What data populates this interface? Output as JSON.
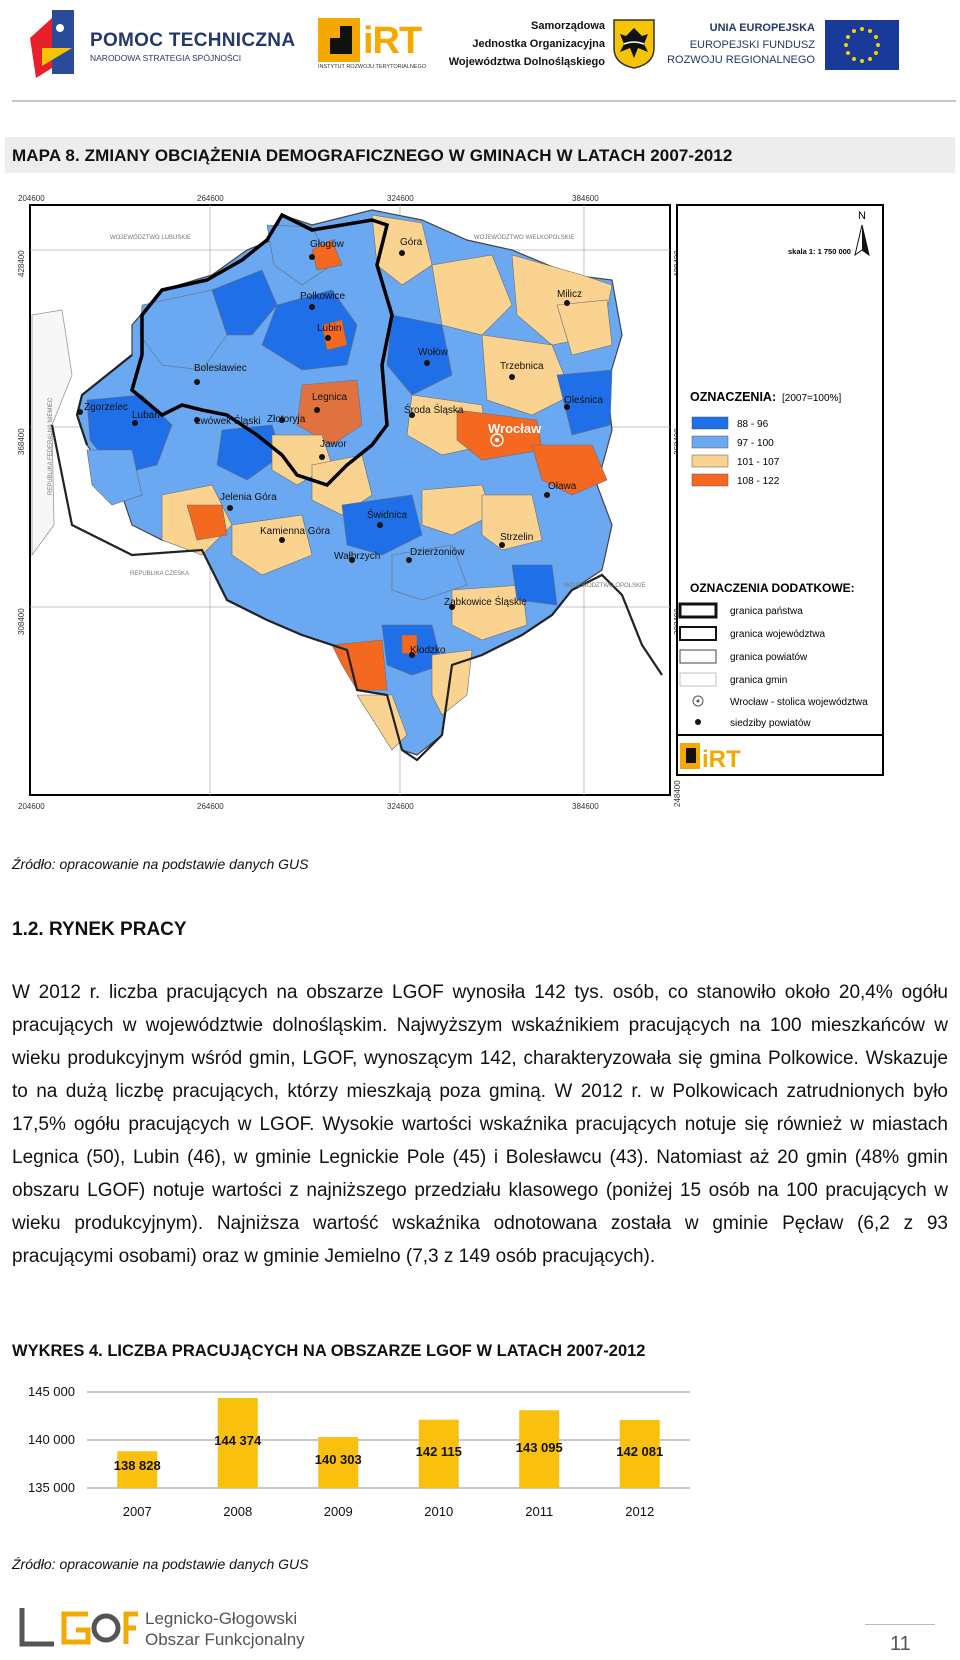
{
  "header": {
    "pt_title": "POMOC TECHNICZNA",
    "pt_sub": "NARODOWA STRATEGIA SPÓJNOŚCI",
    "irt_name": "iRT",
    "irt_sub": "INSTYTUT ROZWOJU TERYTORIALNEGO",
    "sjo_line1": "Samorządowa",
    "sjo_line2": "Jednostka Organizacyjna",
    "sjo_line3": "Województwa Dolnośląskiego",
    "eu_line1": "UNIA EUROPEJSKA",
    "eu_line2": "EUROPEJSKI FUNDUSZ",
    "eu_line3": "ROZWOJU REGIONALNEGO"
  },
  "map": {
    "title": "MAPA 8. ZMIANY OBCIĄŻENIA DEMOGRAFICZNEGO W GMINACH W LATACH 2007-2012",
    "x_ticks": [
      "204600",
      "264600",
      "324600",
      "384600"
    ],
    "y_ticks": [
      "428400",
      "368400",
      "308400",
      "248400"
    ],
    "north": "N",
    "scale": "skala 1: 1 750 000",
    "legend_title": "OZNACZENIA:",
    "legend_note": "[2007=100%]",
    "legend": [
      {
        "label": "88 - 96",
        "color": "#1f6fe8"
      },
      {
        "label": "97 - 100",
        "color": "#6aa8f2"
      },
      {
        "label": "101 - 107",
        "color": "#fbd390"
      },
      {
        "label": "108 - 122",
        "color": "#f4691f"
      }
    ],
    "extra_title": "OZNACZENIA DODATKOWE:",
    "extra": [
      "granica państwa",
      "granica województwa",
      "granica powiatów",
      "granica gmin",
      "Wrocław - stolica województwa",
      "siedziby powiatów"
    ],
    "neighbors": [
      "WOJEWÓDZTWO LUBUSKIE",
      "WOJEWÓDZTWO WIELKOPOLSKIE",
      "REPUBLIKA FEDERALNA NIEMIEC",
      "REPUBLIKA CZESKA",
      "WOJEWÓDZTWO OPOLSKIE"
    ],
    "cities": [
      "Głogów",
      "Góra",
      "Polkowice",
      "Milicz",
      "Lubin",
      "Wołów",
      "Trzebnica",
      "Bolesławiec",
      "Legnica",
      "Oleśnica",
      "Zgorzelec",
      "Lubań",
      "Lwówek Śląski",
      "Złotoryja",
      "Środa Śląska",
      "Wrocław",
      "Jawor",
      "Oława",
      "Jelenia Góra",
      "Świdnica",
      "Kamienna Góra",
      "Strzelin",
      "Wałbrzych",
      "Dzierżoniów",
      "Ząbkowice Śląskie",
      "Kłodzko"
    ],
    "irt_logo": "iRT"
  },
  "source1": "Źródło: opracowanie na podstawie danych GUS",
  "section": {
    "heading": "1.2.  RYNEK PRACY",
    "paragraph": "W 2012 r. liczba pracujących na obszarze LGOF wynosiła 142 tys. osób, co stanowiło około 20,4% ogółu pracujących w województwie dolnośląskim. Najwyższym wskaźnikiem pracujących na 100 mieszkańców w wieku produkcyjnym wśród gmin, LGOF, wynoszącym 142, charakteryzowała się gmina Polkowice. Wskazuje to na dużą liczbę pracujących, którzy mieszkają poza gminą.  W 2012 r. w Polkowicach zatrudnionych było 17,5% ogółu pracujących w LGOF. Wysokie wartości wskaźnika pracujących notuje się również w miastach Legnica (50), Lubin (46), w gminie Legnickie Pole (45) i Bolesławcu (43). Natomiast aż 20 gmin (48% gmin obszaru LGOF) notuje wartości z najniższego przedziału klasowego (poniżej 15 osób na 100 pracujących w wieku produkcyjnym). Najniższa wartość wskaźnika odnotowana została w gminie Pęcław (6,2 z 93 pracującymi osobami) oraz w gminie Jemielno (7,3 z 149 osób pracujących)."
  },
  "chart_title": "WYKRES 4. LICZBA PRACUJĄCYCH NA OBSZARZE LGOF W LATACH 2007-2012",
  "chart_data": {
    "type": "bar",
    "title": "WYKRES 4. LICZBA PRACUJĄCYCH NA OBSZARZE LGOF W LATACH 2007-2012",
    "categories": [
      "2007",
      "2008",
      "2009",
      "2010",
      "2011",
      "2012"
    ],
    "values": [
      138828,
      144374,
      140303,
      142115,
      143095,
      142081
    ],
    "data_labels": [
      "138 828",
      "144 374",
      "140 303",
      "142 115",
      "143 095",
      "142 081"
    ],
    "y_ticks": [
      "145 000",
      "140 000",
      "135 000"
    ],
    "ylim": [
      135000,
      145000
    ],
    "xlabel": "",
    "ylabel": "",
    "bar_color": "#f9c10d",
    "grid": true,
    "legend": "none"
  },
  "source2": "Źródło: opracowanie na podstawie danych GUS",
  "footer": {
    "logo": "LGOF",
    "line1": "Legnicko-Głogowski",
    "line2": "Obszar Funkcjonalny",
    "page": "11"
  }
}
